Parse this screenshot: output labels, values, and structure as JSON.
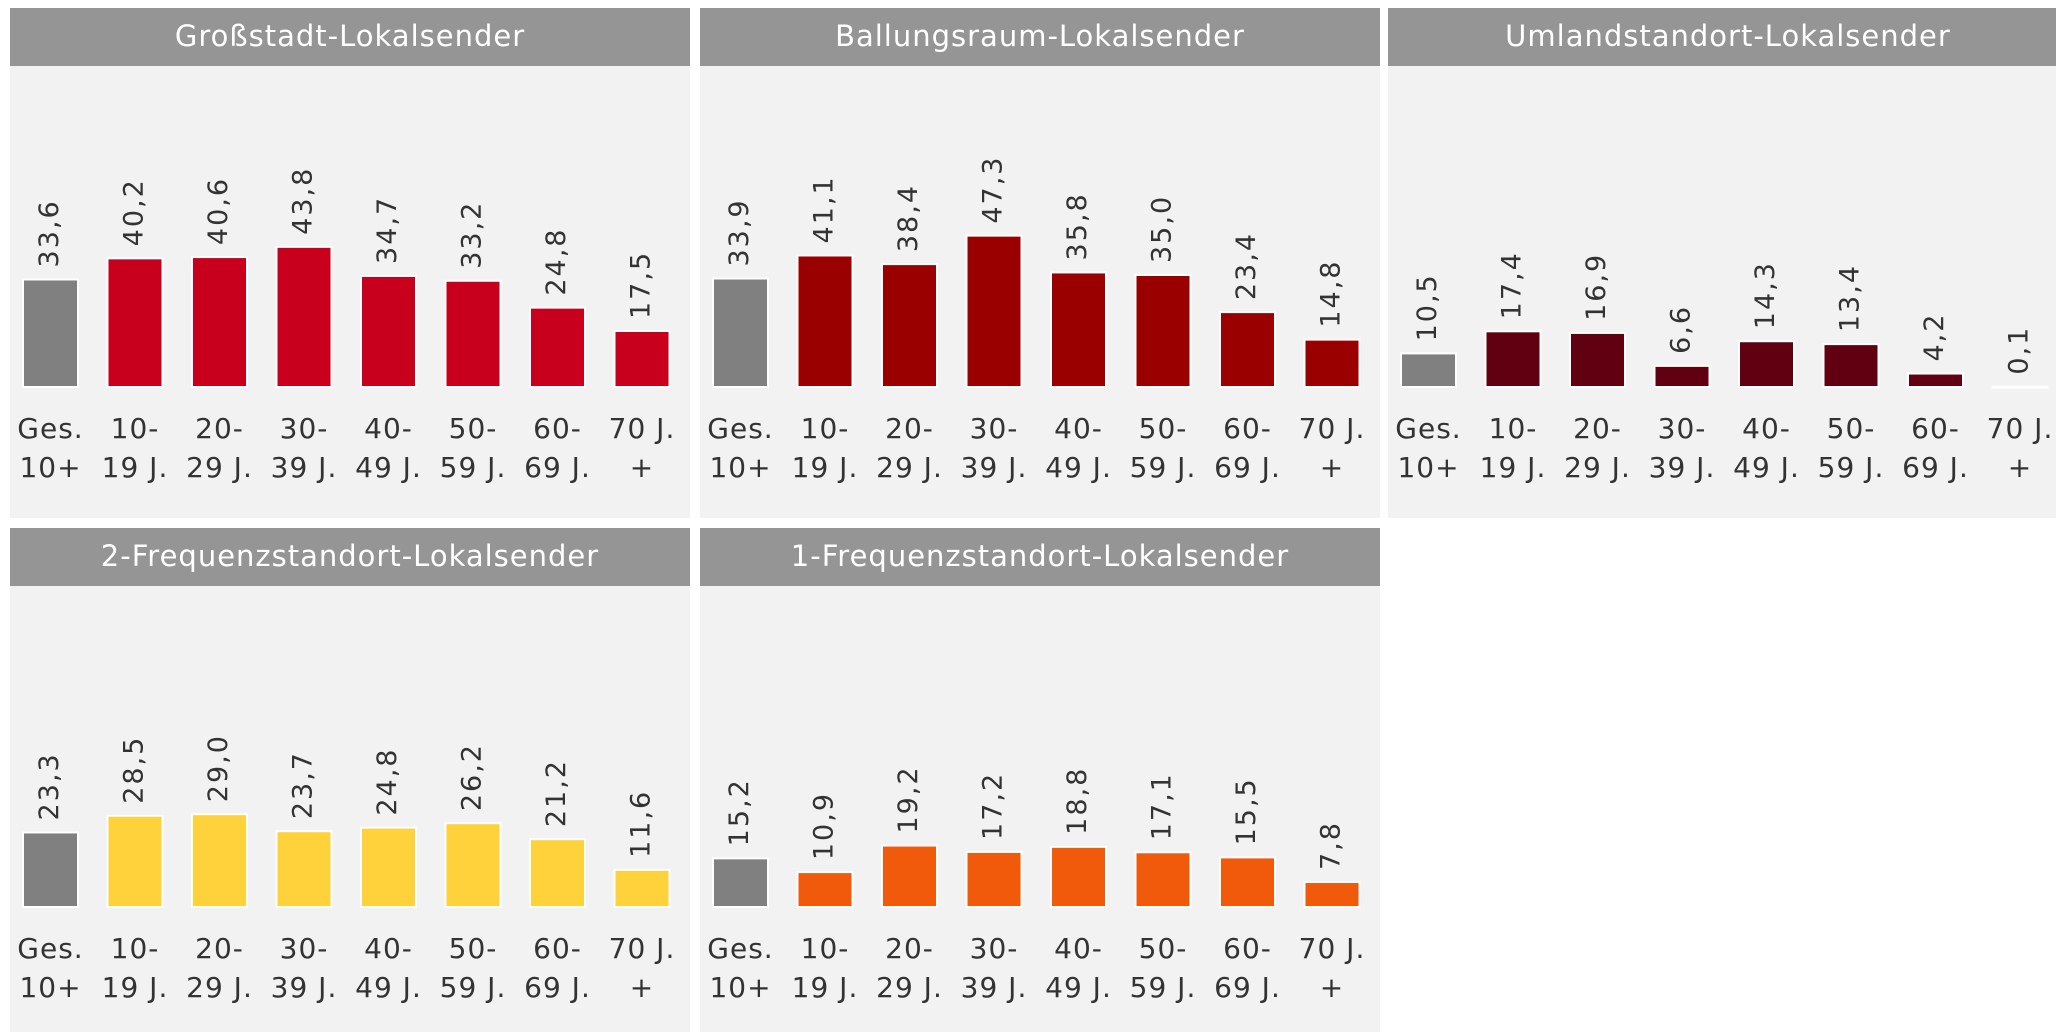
{
  "chart_data": [
    {
      "type": "bar",
      "title": "Großstadt-Lokalsender",
      "categories": [
        [
          "Ges.",
          "10+"
        ],
        [
          "10-",
          "19 J."
        ],
        [
          "20-",
          "29 J."
        ],
        [
          "30-",
          "39 J."
        ],
        [
          "40-",
          "49 J."
        ],
        [
          "50-",
          "59 J."
        ],
        [
          "60-",
          "69 J."
        ],
        [
          "70 J.",
          "+"
        ]
      ],
      "values": [
        33.6,
        40.2,
        40.6,
        43.8,
        34.7,
        33.2,
        24.8,
        17.5
      ],
      "value_labels": [
        "33,6",
        "40,2",
        "40,6",
        "43,8",
        "34,7",
        "33,2",
        "24,8",
        "17,5"
      ],
      "colors": [
        "#808080",
        "#c8001e",
        "#c8001e",
        "#c8001e",
        "#c8001e",
        "#c8001e",
        "#c8001e",
        "#c8001e"
      ]
    },
    {
      "type": "bar",
      "title": "Ballungsraum-Lokalsender",
      "categories": [
        [
          "Ges.",
          "10+"
        ],
        [
          "10-",
          "19 J."
        ],
        [
          "20-",
          "29 J."
        ],
        [
          "30-",
          "39 J."
        ],
        [
          "40-",
          "49 J."
        ],
        [
          "50-",
          "59 J."
        ],
        [
          "60-",
          "69 J."
        ],
        [
          "70 J.",
          "+"
        ]
      ],
      "values": [
        33.9,
        41.1,
        38.4,
        47.3,
        35.8,
        35.0,
        23.4,
        14.8
      ],
      "value_labels": [
        "33,9",
        "41,1",
        "38,4",
        "47,3",
        "35,8",
        "35,0",
        "23,4",
        "14,8"
      ],
      "colors": [
        "#808080",
        "#9a0000",
        "#9a0000",
        "#9a0000",
        "#9a0000",
        "#9a0000",
        "#9a0000",
        "#9a0000"
      ]
    },
    {
      "type": "bar",
      "title": "Umlandstandort-Lokalsender",
      "categories": [
        [
          "Ges.",
          "10+"
        ],
        [
          "10-",
          "19 J."
        ],
        [
          "20-",
          "29 J."
        ],
        [
          "30-",
          "39 J."
        ],
        [
          "40-",
          "49 J."
        ],
        [
          "50-",
          "59 J."
        ],
        [
          "60-",
          "69 J."
        ],
        [
          "70 J.",
          "+"
        ]
      ],
      "values": [
        10.5,
        17.4,
        16.9,
        6.6,
        14.3,
        13.4,
        4.2,
        0.1
      ],
      "value_labels": [
        "10,5",
        "17,4",
        "16,9",
        "6,6",
        "14,3",
        "13,4",
        "4,2",
        "0,1"
      ],
      "colors": [
        "#808080",
        "#600010",
        "#600010",
        "#600010",
        "#600010",
        "#600010",
        "#600010",
        "#600010"
      ]
    },
    {
      "type": "bar",
      "title": "2-Frequenzstandort-Lokalsender",
      "categories": [
        [
          "Ges.",
          "10+"
        ],
        [
          "10-",
          "19 J."
        ],
        [
          "20-",
          "29 J."
        ],
        [
          "30-",
          "39 J."
        ],
        [
          "40-",
          "49 J."
        ],
        [
          "50-",
          "59 J."
        ],
        [
          "60-",
          "69 J."
        ],
        [
          "70 J.",
          "+"
        ]
      ],
      "values": [
        23.3,
        28.5,
        29.0,
        23.7,
        24.8,
        26.2,
        21.2,
        11.6
      ],
      "value_labels": [
        "23,3",
        "28,5",
        "29,0",
        "23,7",
        "24,8",
        "26,2",
        "21,2",
        "11,6"
      ],
      "colors": [
        "#808080",
        "#ffd23c",
        "#ffd23c",
        "#ffd23c",
        "#ffd23c",
        "#ffd23c",
        "#ffd23c",
        "#ffd23c"
      ]
    },
    {
      "type": "bar",
      "title": "1-Frequenzstandort-Lokalsender",
      "categories": [
        [
          "Ges.",
          "10+"
        ],
        [
          "10-",
          "19 J."
        ],
        [
          "20-",
          "29 J."
        ],
        [
          "30-",
          "39 J."
        ],
        [
          "40-",
          "49 J."
        ],
        [
          "50-",
          "59 J."
        ],
        [
          "60-",
          "69 J."
        ],
        [
          "70 J.",
          "+"
        ]
      ],
      "values": [
        15.2,
        10.9,
        19.2,
        17.2,
        18.8,
        17.1,
        15.5,
        7.8
      ],
      "value_labels": [
        "15,2",
        "10,9",
        "19,2",
        "17,2",
        "18,8",
        "17,1",
        "15,5",
        "7,8"
      ],
      "colors": [
        "#808080",
        "#f05a0a",
        "#f05a0a",
        "#f05a0a",
        "#f05a0a",
        "#f05a0a",
        "#f05a0a",
        "#f05a0a"
      ]
    }
  ]
}
